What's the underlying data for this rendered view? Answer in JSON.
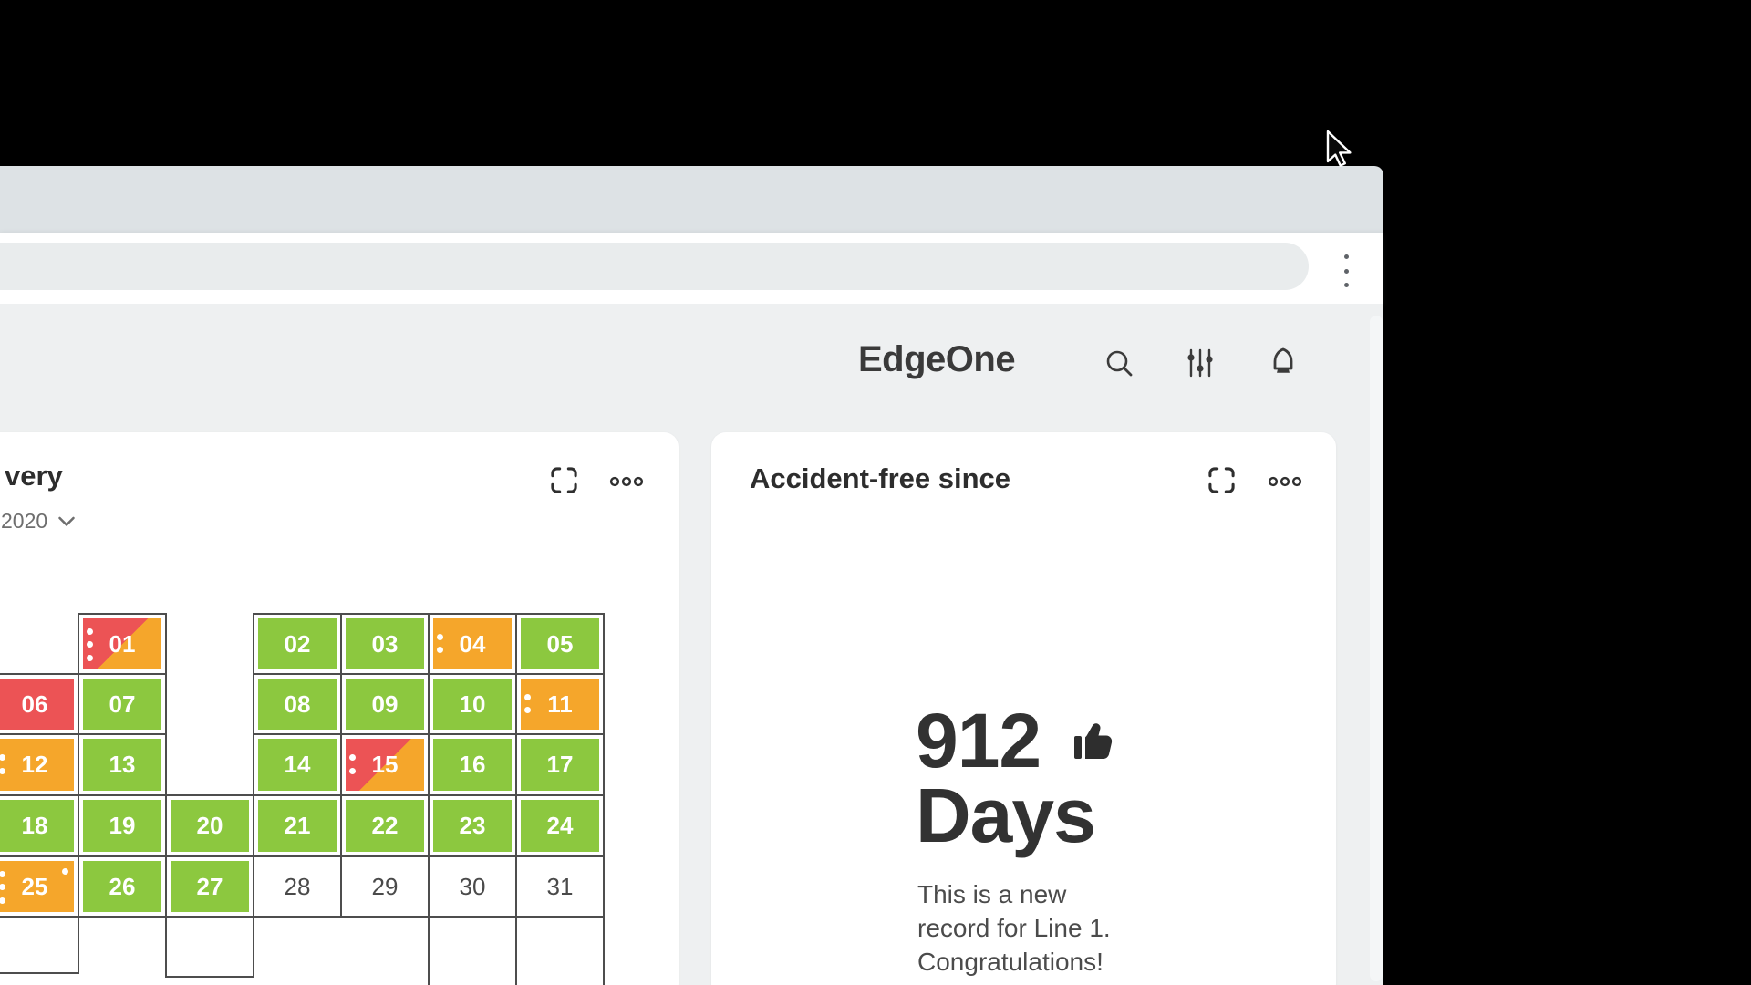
{
  "window": {
    "url_bar_value": "",
    "menu_icon": "vertical-dots"
  },
  "header": {
    "brand": "EdgeOne",
    "icons": [
      "search",
      "filter-sliders",
      "notification-bell"
    ]
  },
  "delivery_card": {
    "title_visible": "very",
    "year_selector": "2020",
    "actions": [
      "fullscreen",
      "more-options"
    ],
    "calendar": {
      "colors": {
        "good": "#8cc83f",
        "warning": "#f5a62b",
        "bad": "#ec5355",
        "grid_border": "#4d4d4d"
      },
      "cells": [
        {
          "day": "01",
          "col": 1,
          "row": 1,
          "color": "split",
          "dots": 3
        },
        {
          "day": "02",
          "col": 3,
          "row": 1,
          "color": "green"
        },
        {
          "day": "03",
          "col": 4,
          "row": 1,
          "color": "green"
        },
        {
          "day": "04",
          "col": 5,
          "row": 1,
          "color": "orange",
          "dots": 2
        },
        {
          "day": "05",
          "col": 6,
          "row": 1,
          "color": "green"
        },
        {
          "day": "06",
          "col": 0,
          "row": 2,
          "color": "red"
        },
        {
          "day": "07",
          "col": 1,
          "row": 2,
          "color": "green"
        },
        {
          "day": "08",
          "col": 3,
          "row": 2,
          "color": "green"
        },
        {
          "day": "09",
          "col": 4,
          "row": 2,
          "color": "green"
        },
        {
          "day": "10",
          "col": 5,
          "row": 2,
          "color": "green"
        },
        {
          "day": "11",
          "col": 6,
          "row": 2,
          "color": "orange",
          "dots": 2
        },
        {
          "day": "12",
          "col": 0,
          "row": 3,
          "color": "orange",
          "dots": 2
        },
        {
          "day": "13",
          "col": 1,
          "row": 3,
          "color": "green"
        },
        {
          "day": "14",
          "col": 3,
          "row": 3,
          "color": "green"
        },
        {
          "day": "15",
          "col": 4,
          "row": 3,
          "color": "split",
          "dots": 2
        },
        {
          "day": "16",
          "col": 5,
          "row": 3,
          "color": "green"
        },
        {
          "day": "17",
          "col": 6,
          "row": 3,
          "color": "green"
        },
        {
          "day": "18",
          "col": 0,
          "row": 4,
          "color": "green"
        },
        {
          "day": "19",
          "col": 1,
          "row": 4,
          "color": "green"
        },
        {
          "day": "20",
          "col": 2,
          "row": 4,
          "color": "green"
        },
        {
          "day": "21",
          "col": 3,
          "row": 4,
          "color": "green"
        },
        {
          "day": "22",
          "col": 4,
          "row": 4,
          "color": "green"
        },
        {
          "day": "23",
          "col": 5,
          "row": 4,
          "color": "green"
        },
        {
          "day": "24",
          "col": 6,
          "row": 4,
          "color": "green"
        },
        {
          "day": "25",
          "col": 0,
          "row": 5,
          "color": "orange",
          "dots": 3,
          "corner_dot": true
        },
        {
          "day": "26",
          "col": 1,
          "row": 5,
          "color": "green"
        },
        {
          "day": "27",
          "col": 2,
          "row": 5,
          "color": "green"
        },
        {
          "day": "28",
          "col": 3,
          "row": 5,
          "color": "plain"
        },
        {
          "day": "29",
          "col": 4,
          "row": 5,
          "color": "plain"
        },
        {
          "day": "30",
          "col": 5,
          "row": 5,
          "color": "plain"
        },
        {
          "day": "31",
          "col": 6,
          "row": 5,
          "color": "plain"
        },
        {
          "day": "",
          "col": 0,
          "row": 6,
          "color": "empty"
        },
        {
          "day": "",
          "col": 2,
          "row": 6,
          "color": "empty"
        },
        {
          "day": "",
          "col": 5,
          "row": 6,
          "color": "empty"
        },
        {
          "day": "",
          "col": 6,
          "row": 6,
          "color": "empty"
        }
      ]
    }
  },
  "accident_card": {
    "title": "Accident-free since",
    "value_primary": "912",
    "value_secondary": "Days",
    "description_lines": [
      "This is a new",
      "record for Line 1.",
      "Congratulations!"
    ]
  }
}
